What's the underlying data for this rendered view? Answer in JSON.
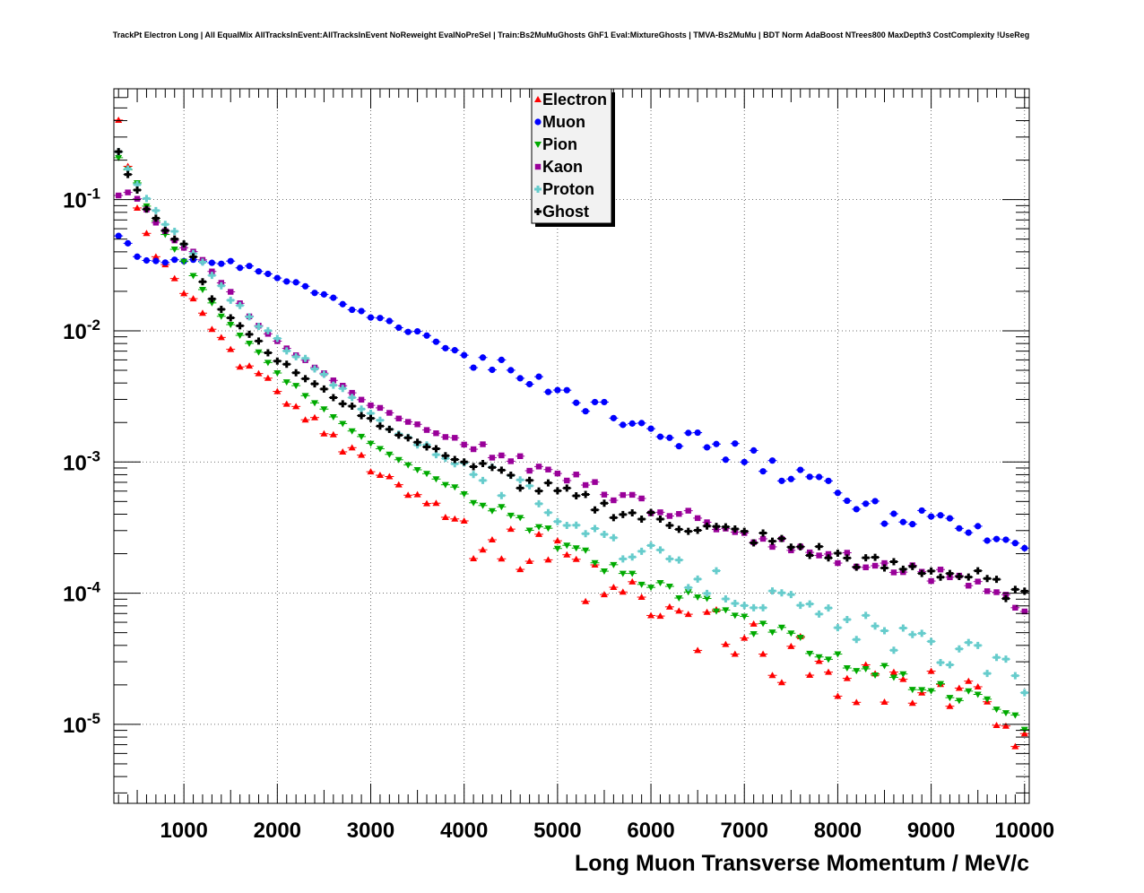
{
  "chart_data": {
    "type": "scatter",
    "title": "TrackPt Electron Long | All EqualMix AllTracksInEvent:AllTracksInEvent NoReweight EvalNoPreSel | Train:Bs2MuMuGhosts GhF1 Eval:MixtureGhosts | TMVA-Bs2MuMu | BDT Norm AdaBoost NTrees800 MaxDepth3 CostComplexity !UseReg",
    "xlabel": "Long Muon Transverse Momentum / MeV/c",
    "ylabel": "",
    "xlim": [
      250,
      10050
    ],
    "ylim": [
      2.5e-06,
      0.7
    ],
    "yscale": "log",
    "grid": true,
    "legend_position": "top-center",
    "x_ticks": [
      "1000",
      "2000",
      "3000",
      "4000",
      "5000",
      "6000",
      "7000",
      "8000",
      "9000",
      "10000"
    ],
    "y_ticks": [
      {
        "base": "10",
        "exp": "-1"
      },
      {
        "base": "10",
        "exp": "-2"
      },
      {
        "base": "10",
        "exp": "-3"
      },
      {
        "base": "10",
        "exp": "-4"
      },
      {
        "base": "10",
        "exp": "-5"
      }
    ],
    "x_step": 100,
    "x_start": 300,
    "series": [
      {
        "name": "Electron",
        "color": "#ff0000",
        "marker": "triangle-up",
        "anchors": [
          [
            300,
            0.36
          ],
          [
            400,
            0.19
          ],
          [
            500,
            0.09
          ],
          [
            600,
            0.055
          ],
          [
            700,
            0.04
          ],
          [
            800,
            0.035
          ],
          [
            900,
            0.028
          ],
          [
            1000,
            0.021
          ],
          [
            1100,
            0.016
          ],
          [
            1200,
            0.012
          ],
          [
            1400,
            0.008
          ],
          [
            1600,
            0.0058
          ],
          [
            1800,
            0.0045
          ],
          [
            2000,
            0.0033
          ],
          [
            2200,
            0.0026
          ],
          [
            2500,
            0.0017
          ],
          [
            2800,
            0.0012
          ],
          [
            3000,
            0.00095
          ],
          [
            3300,
            0.0007
          ],
          [
            3600,
            0.0005
          ],
          [
            4000,
            0.00033
          ],
          [
            4300,
            0.00026
          ],
          [
            4500,
            0.0002
          ],
          [
            4800,
            0.00017
          ],
          [
            5000,
            0.00015
          ],
          [
            5300,
            0.00011
          ],
          [
            5600,
            9e-05
          ],
          [
            6000,
            7e-05
          ],
          [
            6400,
            5.5e-05
          ],
          [
            7000,
            4e-05
          ],
          [
            7500,
            3e-05
          ],
          [
            8000,
            2.5e-05
          ],
          [
            8500,
            2e-05
          ],
          [
            9000,
            1.7e-05
          ],
          [
            9500,
            1.3e-05
          ],
          [
            10000,
            1e-05
          ]
        ],
        "noise": 0.28
      },
      {
        "name": "Muon",
        "color": "#0000ff",
        "marker": "circle",
        "anchors": [
          [
            300,
            0.052
          ],
          [
            400,
            0.045
          ],
          [
            500,
            0.038
          ],
          [
            600,
            0.035
          ],
          [
            700,
            0.034
          ],
          [
            1000,
            0.034
          ],
          [
            1300,
            0.034
          ],
          [
            1500,
            0.033
          ],
          [
            1800,
            0.029
          ],
          [
            2000,
            0.026
          ],
          [
            2500,
            0.019
          ],
          [
            3000,
            0.013
          ],
          [
            3500,
            0.0095
          ],
          [
            4000,
            0.0065
          ],
          [
            4500,
            0.0047
          ],
          [
            5000,
            0.0035
          ],
          [
            5500,
            0.0026
          ],
          [
            6000,
            0.0019
          ],
          [
            6500,
            0.0014
          ],
          [
            7000,
            0.0011
          ],
          [
            7500,
            0.0008
          ],
          [
            8000,
            0.0006
          ],
          [
            8500,
            0.0004
          ],
          [
            9000,
            0.00037
          ],
          [
            9500,
            0.00028
          ],
          [
            10000,
            0.00024
          ]
        ],
        "noise": 0.1
      },
      {
        "name": "Pion",
        "color": "#00aa00",
        "marker": "triangle-down",
        "anchors": [
          [
            300,
            0.21
          ],
          [
            400,
            0.17
          ],
          [
            500,
            0.13
          ],
          [
            600,
            0.092
          ],
          [
            700,
            0.067
          ],
          [
            800,
            0.055
          ],
          [
            900,
            0.042
          ],
          [
            1000,
            0.033
          ],
          [
            1100,
            0.026
          ],
          [
            1200,
            0.02
          ],
          [
            1400,
            0.013
          ],
          [
            1600,
            0.009
          ],
          [
            1800,
            0.0067
          ],
          [
            2000,
            0.0047
          ],
          [
            2300,
            0.0033
          ],
          [
            2600,
            0.0022
          ],
          [
            3000,
            0.0014
          ],
          [
            3500,
            0.00088
          ],
          [
            4000,
            0.00058
          ],
          [
            4500,
            0.0004
          ],
          [
            5000,
            0.00025
          ],
          [
            5500,
            0.00017
          ],
          [
            6000,
            0.00012
          ],
          [
            6500,
            8.5e-05
          ],
          [
            7000,
            6e-05
          ],
          [
            7500,
            4.5e-05
          ],
          [
            8000,
            3.2e-05
          ],
          [
            8500,
            2.5e-05
          ],
          [
            9000,
            1.9e-05
          ],
          [
            9500,
            1.5e-05
          ],
          [
            10000,
            1e-05
          ]
        ],
        "noise": 0.08
      },
      {
        "name": "Kaon",
        "color": "#990099",
        "marker": "square",
        "anchors": [
          [
            300,
            0.11
          ],
          [
            400,
            0.11
          ],
          [
            500,
            0.1
          ],
          [
            600,
            0.082
          ],
          [
            700,
            0.068
          ],
          [
            800,
            0.058
          ],
          [
            900,
            0.05
          ],
          [
            1000,
            0.044
          ],
          [
            1100,
            0.04
          ],
          [
            1200,
            0.035
          ],
          [
            1300,
            0.029
          ],
          [
            1400,
            0.023
          ],
          [
            1600,
            0.016
          ],
          [
            1800,
            0.011
          ],
          [
            2000,
            0.0085
          ],
          [
            2500,
            0.0047
          ],
          [
            3000,
            0.0027
          ],
          [
            3500,
            0.0019
          ],
          [
            4000,
            0.0014
          ],
          [
            4500,
            0.0011
          ],
          [
            5000,
            0.0008
          ],
          [
            5500,
            0.0006
          ],
          [
            6000,
            0.00045
          ],
          [
            6500,
            0.00036
          ],
          [
            7000,
            0.00029
          ],
          [
            7500,
            0.00022
          ],
          [
            8000,
            0.00019
          ],
          [
            8500,
            0.00016
          ],
          [
            9000,
            0.00014
          ],
          [
            9500,
            0.00011
          ],
          [
            10000,
            8e-05
          ]
        ],
        "noise": 0.07
      },
      {
        "name": "Proton",
        "color": "#66cccc",
        "marker": "cross",
        "anchors": [
          [
            300,
            0.22
          ],
          [
            400,
            0.17
          ],
          [
            500,
            0.13
          ],
          [
            600,
            0.1
          ],
          [
            700,
            0.082
          ],
          [
            800,
            0.065
          ],
          [
            900,
            0.055
          ],
          [
            1000,
            0.046
          ],
          [
            1100,
            0.039
          ],
          [
            1200,
            0.032
          ],
          [
            1300,
            0.026
          ],
          [
            1400,
            0.021
          ],
          [
            1600,
            0.0155
          ],
          [
            1800,
            0.0115
          ],
          [
            2000,
            0.0085
          ],
          [
            2500,
            0.0045
          ],
          [
            3000,
            0.0023
          ],
          [
            3500,
            0.0014
          ],
          [
            4000,
            0.00095
          ],
          [
            4500,
            0.00063
          ],
          [
            5000,
            0.00043
          ],
          [
            5500,
            0.00028
          ],
          [
            6000,
            0.00018
          ],
          [
            6500,
            0.00013
          ],
          [
            7000,
            0.0001
          ],
          [
            7500,
            8e-05
          ],
          [
            8000,
            5.8e-05
          ],
          [
            8500,
            5e-05
          ],
          [
            9000,
            3.8e-05
          ],
          [
            9500,
            3.2e-05
          ],
          [
            10000,
            2.2e-05
          ]
        ],
        "noise": 0.14
      },
      {
        "name": "Ghost",
        "color": "#000000",
        "marker": "cross",
        "anchors": [
          [
            300,
            0.23
          ],
          [
            400,
            0.16
          ],
          [
            500,
            0.12
          ],
          [
            600,
            0.085
          ],
          [
            700,
            0.07
          ],
          [
            800,
            0.058
          ],
          [
            900,
            0.05
          ],
          [
            1000,
            0.045
          ],
          [
            1100,
            0.037
          ],
          [
            1200,
            0.024
          ],
          [
            1300,
            0.018
          ],
          [
            1400,
            0.015
          ],
          [
            1600,
            0.011
          ],
          [
            1800,
            0.0083
          ],
          [
            2000,
            0.006
          ],
          [
            2500,
            0.0035
          ],
          [
            3000,
            0.0021
          ],
          [
            3500,
            0.0014
          ],
          [
            4000,
            0.001
          ],
          [
            4500,
            0.00075
          ],
          [
            5000,
            0.00058
          ],
          [
            5500,
            0.00045
          ],
          [
            6000,
            0.00037
          ],
          [
            6500,
            0.00032
          ],
          [
            7000,
            0.00028
          ],
          [
            7500,
            0.00023
          ],
          [
            8000,
            0.00019
          ],
          [
            8500,
            0.00016
          ],
          [
            9000,
            0.00015
          ],
          [
            9500,
            0.00013
          ],
          [
            10000,
            9e-05
          ]
        ],
        "noise": 0.08
      }
    ]
  }
}
